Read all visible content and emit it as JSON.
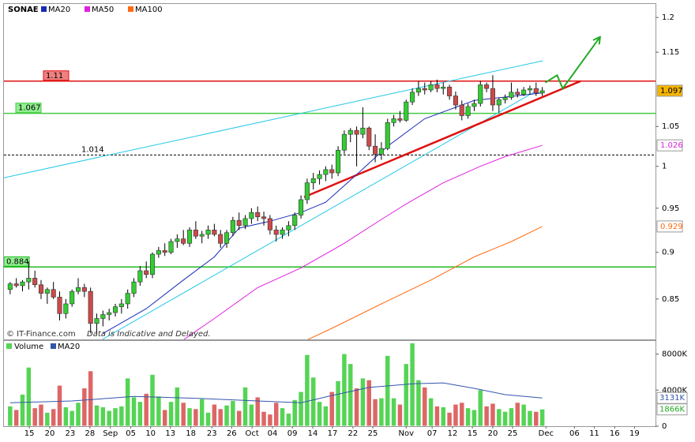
{
  "chart_data": [
    {
      "type": "candlestick",
      "title": "SONAE",
      "log_scale": true,
      "xlim": [
        -1.0,
        104.3
      ],
      "ylim": [
        0.809,
        1.22
      ],
      "yticks": [
        0.85,
        0.9,
        0.95,
        1,
        1.05,
        1.15,
        1.2
      ],
      "up_color": "#33cc33",
      "down_color": "#cc4a4a",
      "candles": [
        [
          0.86,
          0.868,
          0.855,
          0.866
        ],
        [
          0.866,
          0.872,
          0.862,
          0.864
        ],
        [
          0.864,
          0.87,
          0.858,
          0.868
        ],
        [
          0.868,
          0.89,
          0.86,
          0.872
        ],
        [
          0.872,
          0.88,
          0.862,
          0.865
        ],
        [
          0.865,
          0.87,
          0.85,
          0.856
        ],
        [
          0.856,
          0.862,
          0.845,
          0.86
        ],
        [
          0.86,
          0.868,
          0.85,
          0.852
        ],
        [
          0.852,
          0.858,
          0.828,
          0.835
        ],
        [
          0.835,
          0.85,
          0.83,
          0.845
        ],
        [
          0.845,
          0.86,
          0.842,
          0.858
        ],
        [
          0.858,
          0.872,
          0.855,
          0.862
        ],
        [
          0.862,
          0.866,
          0.852,
          0.858
        ],
        [
          0.858,
          0.862,
          0.815,
          0.825
        ],
        [
          0.825,
          0.835,
          0.815,
          0.83
        ],
        [
          0.83,
          0.838,
          0.822,
          0.834
        ],
        [
          0.834,
          0.84,
          0.828,
          0.836
        ],
        [
          0.836,
          0.845,
          0.832,
          0.842
        ],
        [
          0.842,
          0.85,
          0.835,
          0.845
        ],
        [
          0.845,
          0.86,
          0.84,
          0.856
        ],
        [
          0.856,
          0.872,
          0.852,
          0.868
        ],
        [
          0.868,
          0.885,
          0.864,
          0.88
        ],
        [
          0.88,
          0.89,
          0.872,
          0.876
        ],
        [
          0.876,
          0.9,
          0.872,
          0.898
        ],
        [
          0.898,
          0.906,
          0.894,
          0.902
        ],
        [
          0.902,
          0.91,
          0.896,
          0.9
        ],
        [
          0.9,
          0.915,
          0.898,
          0.912
        ],
        [
          0.912,
          0.92,
          0.905,
          0.915
        ],
        [
          0.915,
          0.925,
          0.908,
          0.91
        ],
        [
          0.91,
          0.928,
          0.906,
          0.925
        ],
        [
          0.925,
          0.935,
          0.915,
          0.918
        ],
        [
          0.918,
          0.924,
          0.91,
          0.92
        ],
        [
          0.92,
          0.93,
          0.915,
          0.925
        ],
        [
          0.925,
          0.932,
          0.918,
          0.92
        ],
        [
          0.92,
          0.925,
          0.905,
          0.91
        ],
        [
          0.91,
          0.925,
          0.905,
          0.922
        ],
        [
          0.922,
          0.94,
          0.918,
          0.936
        ],
        [
          0.936,
          0.945,
          0.925,
          0.93
        ],
        [
          0.93,
          0.942,
          0.926,
          0.938
        ],
        [
          0.938,
          0.95,
          0.932,
          0.945
        ],
        [
          0.945,
          0.952,
          0.935,
          0.94
        ],
        [
          0.94,
          0.946,
          0.93,
          0.938
        ],
        [
          0.938,
          0.942,
          0.92,
          0.925
        ],
        [
          0.925,
          0.93,
          0.912,
          0.92
        ],
        [
          0.92,
          0.928,
          0.915,
          0.925
        ],
        [
          0.925,
          0.935,
          0.918,
          0.93
        ],
        [
          0.93,
          0.945,
          0.925,
          0.942
        ],
        [
          0.942,
          0.965,
          0.938,
          0.96
        ],
        [
          0.96,
          0.985,
          0.955,
          0.98
        ],
        [
          0.98,
          0.992,
          0.972,
          0.985
        ],
        [
          0.985,
          0.995,
          0.978,
          0.99
        ],
        [
          0.99,
          1.0,
          0.982,
          0.996
        ],
        [
          0.996,
          1.002,
          0.985,
          0.992
        ],
        [
          0.992,
          1.025,
          0.988,
          1.02
        ],
        [
          1.02,
          1.045,
          1.015,
          1.04
        ],
        [
          1.04,
          1.048,
          1.03,
          1.045
        ],
        [
          1.045,
          1.05,
          1.0,
          1.04
        ],
        [
          1.04,
          1.075,
          1.035,
          1.048
        ],
        [
          1.048,
          1.05,
          1.02,
          1.025
        ],
        [
          1.025,
          1.04,
          1.005,
          1.015
        ],
        [
          1.015,
          1.03,
          1.008,
          1.022
        ],
        [
          1.022,
          1.06,
          1.02,
          1.055
        ],
        [
          1.055,
          1.065,
          1.05,
          1.06
        ],
        [
          1.06,
          1.07,
          1.055,
          1.058
        ],
        [
          1.058,
          1.085,
          1.056,
          1.082
        ],
        [
          1.082,
          1.1,
          1.078,
          1.095
        ],
        [
          1.095,
          1.11,
          1.09,
          1.1
        ],
        [
          1.1,
          1.108,
          1.092,
          1.098
        ],
        [
          1.098,
          1.11,
          1.095,
          1.105
        ],
        [
          1.105,
          1.112,
          1.095,
          1.1
        ],
        [
          1.1,
          1.108,
          1.092,
          1.102
        ],
        [
          1.102,
          1.105,
          1.085,
          1.09
        ],
        [
          1.09,
          1.096,
          1.072,
          1.078
        ],
        [
          1.078,
          1.084,
          1.058,
          1.064
        ],
        [
          1.064,
          1.08,
          1.06,
          1.076
        ],
        [
          1.076,
          1.085,
          1.07,
          1.08
        ],
        [
          1.08,
          1.11,
          1.076,
          1.105
        ],
        [
          1.105,
          1.108,
          1.095,
          1.1
        ],
        [
          1.1,
          1.118,
          1.07,
          1.078
        ],
        [
          1.078,
          1.088,
          1.068,
          1.085
        ],
        [
          1.085,
          1.092,
          1.08,
          1.088
        ],
        [
          1.088,
          1.108,
          1.085,
          1.095
        ],
        [
          1.095,
          1.1,
          1.088,
          1.092
        ],
        [
          1.092,
          1.102,
          1.09,
          1.098
        ],
        [
          1.098,
          1.104,
          1.092,
          1.1
        ],
        [
          1.1,
          1.108,
          1.09,
          1.094
        ],
        [
          1.094,
          1.102,
          1.09,
          1.097
        ]
      ],
      "series": [
        {
          "name": "MA20",
          "color": "#1a2bb8",
          "x": [
            15,
            22,
            28,
            33,
            37,
            42,
            47,
            51,
            56,
            61,
            67,
            75,
            86
          ],
          "values": [
            0.815,
            0.84,
            0.87,
            0.895,
            0.927,
            0.935,
            0.945,
            0.957,
            0.99,
            1.025,
            1.06,
            1.084,
            1.094
          ]
        },
        {
          "name": "MA50",
          "color": "#e020e0",
          "x": [
            26,
            33,
            40,
            47,
            54,
            60,
            64,
            70,
            76,
            80,
            86
          ],
          "values": [
            0.8,
            0.83,
            0.862,
            0.883,
            0.91,
            0.937,
            0.955,
            0.98,
            1.0,
            1.012,
            1.026
          ]
        },
        {
          "name": "MA100",
          "color": "#ff6a10",
          "x": [
            45,
            52,
            60,
            68,
            75,
            81,
            86
          ],
          "values": [
            0.8,
            0.82,
            0.845,
            0.87,
            0.895,
            0.912,
            0.929
          ]
        }
      ],
      "levels": [
        {
          "value": 1.11,
          "color": "#e01010",
          "box": "#f08080"
        },
        {
          "value": 1.067,
          "color": "#44cc44",
          "box": "#90ee90"
        },
        {
          "value": 1.014,
          "color": "#000000",
          "style": "dashed"
        },
        {
          "value": 0.884,
          "color": "#22bb22",
          "box": "#90ee90"
        }
      ],
      "trend_lines": [
        {
          "color": "#22c8e8",
          "x": [
            -1.0,
            86.1
          ],
          "y": [
            0.986,
            1.138
          ]
        },
        {
          "color": "#22c8e8",
          "x": [
            14.9,
            85.5
          ],
          "y": [
            0.809,
            1.099
          ]
        },
        {
          "color": "#e01010",
          "x": [
            47.5,
            92.2
          ],
          "y": [
            0.963,
            1.11
          ]
        }
      ],
      "arrow": {
        "color": "#22aa22",
        "x": [
          86.5,
          88.4,
          89.3,
          95.2
        ],
        "y": [
          1.108,
          1.118,
          1.1,
          1.17
        ]
      },
      "last_labels": [
        {
          "value": 1.097,
          "color": "#000000",
          "box": "#f5b400"
        },
        {
          "value": 1.026,
          "color": "#e020e0"
        },
        {
          "value": 0.929,
          "color": "#ff6a10"
        }
      ],
      "notes": [
        "© IT-Finance.com",
        "Data is Indicative and Delayed."
      ]
    },
    {
      "type": "bar",
      "title": "Volume",
      "xlim": [
        -1.0,
        104.3
      ],
      "ylim": [
        0,
        9450
      ],
      "yticks": [
        0,
        {
          "value": 4000,
          "label": "4000K"
        },
        {
          "value": 8000,
          "label": "8000K"
        }
      ],
      "xticks": [
        {
          "value": 3.1,
          "label": "15"
        },
        {
          "value": 6.4,
          "label": "20"
        },
        {
          "value": 9.7,
          "label": "23"
        },
        {
          "value": 12.9,
          "label": "28"
        },
        {
          "value": 16.2,
          "label": "Sep"
        },
        {
          "value": 19.5,
          "label": "05"
        },
        {
          "value": 22.7,
          "label": "10"
        },
        {
          "value": 25.9,
          "label": "13"
        },
        {
          "value": 29.2,
          "label": "18"
        },
        {
          "value": 32.6,
          "label": "23"
        },
        {
          "value": 35.8,
          "label": "26"
        },
        {
          "value": 39.1,
          "label": "Oct"
        },
        {
          "value": 42.4,
          "label": "04"
        },
        {
          "value": 45.6,
          "label": "09"
        },
        {
          "value": 48.9,
          "label": "14"
        },
        {
          "value": 52.1,
          "label": "17"
        },
        {
          "value": 55.4,
          "label": "22"
        },
        {
          "value": 58.6,
          "label": "25"
        },
        {
          "value": 64.0,
          "label": "Nov"
        },
        {
          "value": 68.2,
          "label": "07"
        },
        {
          "value": 71.5,
          "label": "12"
        },
        {
          "value": 74.7,
          "label": "15"
        },
        {
          "value": 78.0,
          "label": "20"
        },
        {
          "value": 81.2,
          "label": "25"
        },
        {
          "value": 86.6,
          "label": "Dec"
        },
        {
          "value": 91.2,
          "label": "06"
        },
        {
          "value": 94.4,
          "label": "11"
        },
        {
          "value": 97.7,
          "label": "16"
        },
        {
          "value": 100.9,
          "label": "19"
        }
      ],
      "values": [
        2200,
        1800,
        3500,
        6500,
        2000,
        2400,
        1500,
        1900,
        4500,
        2100,
        1700,
        2600,
        4200,
        6100,
        2300,
        2100,
        1700,
        2000,
        2200,
        5300,
        3200,
        2700,
        3600,
        5700,
        3300,
        1800,
        2700,
        4300,
        2600,
        2000,
        1900,
        3000,
        1500,
        2400,
        1900,
        2300,
        2800,
        1700,
        4300,
        2400,
        3200,
        1600,
        1300,
        2600,
        2000,
        1400,
        2900,
        3800,
        7900,
        5400,
        2700,
        2200,
        3800,
        5000,
        8000,
        6900,
        4200,
        5300,
        5100,
        3000,
        3100,
        7800,
        3100,
        2400,
        6900,
        9200,
        5100,
        4300,
        3100,
        2200,
        2100,
        1500,
        2400,
        2600,
        2000,
        1800,
        4000,
        2200,
        2500,
        1900,
        1600,
        2000,
        2600,
        2400,
        1700,
        1600,
        1866
      ],
      "up_color": "#55d455",
      "down_color": "#dd6666",
      "series": [
        {
          "name": "MA20",
          "color": "#3355aa",
          "x": [
            0,
            10,
            20,
            30,
            40,
            47,
            52,
            58,
            65,
            70,
            75,
            80,
            86
          ],
          "values": [
            2600,
            2800,
            3300,
            3100,
            2800,
            2600,
            3400,
            4300,
            4700,
            4800,
            4200,
            3500,
            3131
          ]
        }
      ],
      "legend_color": "#55d455",
      "last_labels": [
        {
          "value": 3131,
          "label": "3131K",
          "color": "#3355aa"
        },
        {
          "value": 1866,
          "label": "1866K",
          "color": "#22aa22"
        }
      ]
    }
  ]
}
